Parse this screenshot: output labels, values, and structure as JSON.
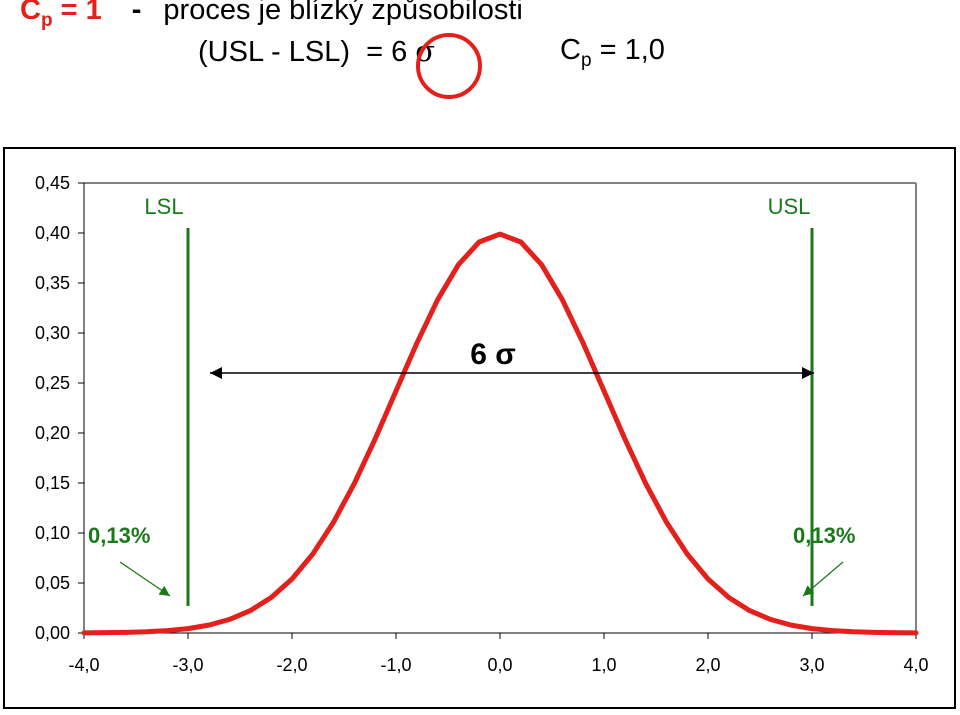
{
  "header": {
    "cp_symbol": "C",
    "cp_subscript": "p",
    "cp_value": "= 1",
    "dash": "-",
    "description": "proces je blízký způsobilosti",
    "formula_left": "(USL - LSL)",
    "formula_eq": "=",
    "formula_value": "6",
    "sigma": "σ",
    "cp2_symbol": "C",
    "cp2_subscript": "p",
    "cp2_value": "= 1,0"
  },
  "chart_data": {
    "type": "line",
    "title": "",
    "xlabel": "",
    "ylabel": "",
    "xlim": [
      -4.0,
      4.0
    ],
    "ylim": [
      0.0,
      0.45
    ],
    "x_ticks": [
      -4.0,
      -3.0,
      -2.0,
      -1.0,
      0.0,
      1.0,
      2.0,
      3.0,
      4.0
    ],
    "x_tick_labels": [
      "-4,0",
      "-3,0",
      "-2,0",
      "-1,0",
      "0,0",
      "1,0",
      "2,0",
      "3,0",
      "4,0"
    ],
    "y_ticks": [
      0.0,
      0.05,
      0.1,
      0.15,
      0.2,
      0.25,
      0.3,
      0.35,
      0.4,
      0.45
    ],
    "y_tick_labels": [
      "0,00",
      "0,05",
      "0,10",
      "0,15",
      "0,20",
      "0,25",
      "0,30",
      "0,35",
      "0,40",
      "0,45"
    ],
    "grid": false,
    "series": [
      {
        "color": "#e3201b",
        "x": [
          -4.0,
          -3.6,
          -3.4,
          -3.2,
          -3.0,
          -2.8,
          -2.6,
          -2.4,
          -2.2,
          -2.0,
          -1.8,
          -1.6,
          -1.4,
          -1.2,
          -1.0,
          -0.8,
          -0.6,
          -0.4,
          -0.2,
          0.0,
          0.2,
          0.4,
          0.6,
          0.8,
          1.0,
          1.2,
          1.4,
          1.6,
          1.8,
          2.0,
          2.2,
          2.4,
          2.6,
          2.8,
          3.0,
          3.2,
          3.4,
          3.6,
          4.0
        ],
        "y": [
          0.0001,
          0.0006,
          0.0012,
          0.0024,
          0.0044,
          0.0079,
          0.0136,
          0.0224,
          0.0355,
          0.054,
          0.079,
          0.1109,
          0.1497,
          0.1942,
          0.242,
          0.2897,
          0.3332,
          0.3683,
          0.391,
          0.3989,
          0.391,
          0.3683,
          0.3332,
          0.2897,
          0.242,
          0.1942,
          0.1497,
          0.1109,
          0.079,
          0.054,
          0.0355,
          0.0224,
          0.0136,
          0.0079,
          0.0044,
          0.0024,
          0.0012,
          0.0006,
          0.0001
        ]
      }
    ],
    "spec_limits": [
      {
        "label": "LSL",
        "x": -3.0,
        "color": "#1a7a1a"
      },
      {
        "label": "USL",
        "x": 3.0,
        "color": "#1a7a1a"
      }
    ],
    "span_annotation": {
      "text": "6 σ",
      "from": -3.0,
      "to": 3.0,
      "y": 0.26
    },
    "tail_annotations": [
      {
        "text": "0,13%",
        "color": "#1a7a1a"
      },
      {
        "text": "0,13%",
        "color": "#1a7a1a"
      }
    ]
  }
}
